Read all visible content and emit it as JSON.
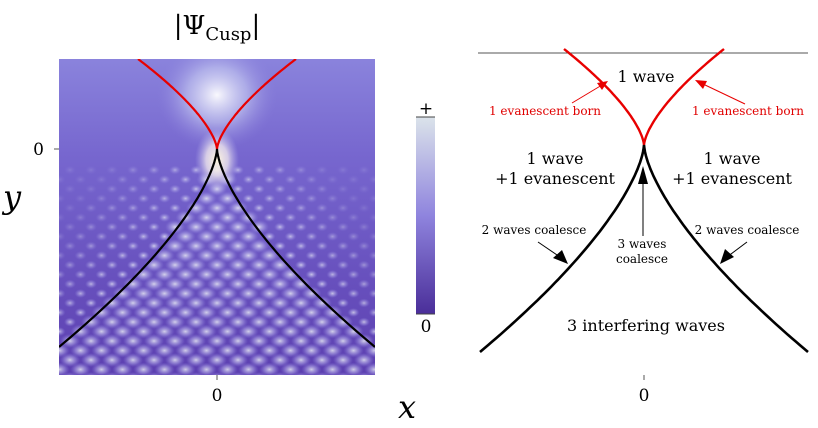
{
  "title": "|Ψ",
  "title_sub": "Cusp",
  "title_end": "|",
  "colorbar": {
    "top_label": "+",
    "bottom_label": "0",
    "colors": [
      "#4a2e99",
      "#8f84de",
      "#dbe3ea"
    ]
  },
  "axes": {
    "x_var": "x",
    "y_var": "y",
    "x_tick": "0",
    "y_tick": "0",
    "x_tick_right": "0"
  },
  "regions": {
    "top": "1 wave",
    "left_line1": "1 wave",
    "left_line2": "+1 evanescent",
    "right_line1": "1 wave",
    "right_line2": "+1 evanescent",
    "bottom": "3 interfering waves"
  },
  "annotations": {
    "evanescent_left": "1 evanescent born",
    "evanescent_right": "1 evanescent born",
    "coalesce_left": "2 waves coalesce",
    "coalesce_right": "2 waves coalesce",
    "three_line1": "3 waves",
    "three_line2": "coalesce"
  },
  "colors": {
    "red_curve": "#e80000",
    "black_curve": "#000000",
    "bg_dark": "#5c3fb0"
  }
}
